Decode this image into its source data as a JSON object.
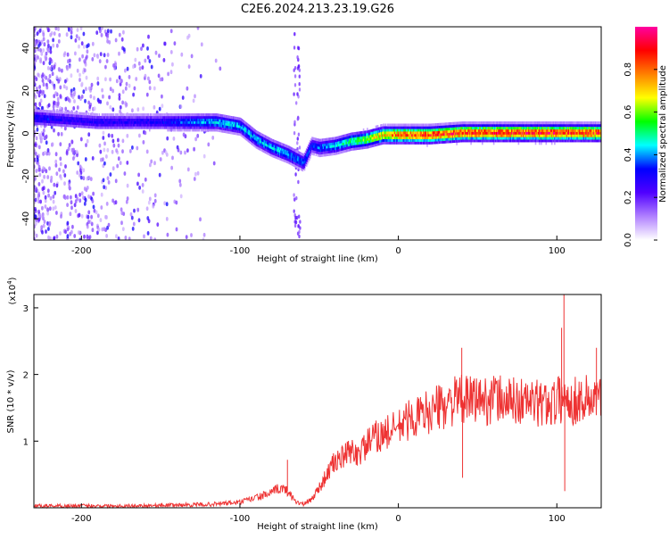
{
  "title": "C2E6.2024.213.23.19.G26",
  "chart_data": [
    {
      "type": "heatmap",
      "xlabel": "Height of straight line (km)",
      "ylabel": "Frequency (Hz)",
      "xlim": [
        -230,
        128
      ],
      "ylim": [
        -50,
        50
      ],
      "x_ticks": [
        "-200",
        "-100",
        "0",
        "100"
      ],
      "x_tick_values": [
        -200,
        -100,
        0,
        100
      ],
      "y_ticks": [
        "-40",
        "-20",
        "0",
        "20",
        "40"
      ],
      "y_tick_values": [
        -40,
        -20,
        0,
        20,
        40
      ],
      "grid": false,
      "colorbar": {
        "label": "Normalized spectral amplitude",
        "range": [
          0,
          1
        ],
        "ticks": [
          "0.0",
          "0.2",
          "0.4",
          "0.6",
          "0.8"
        ],
        "tick_values": [
          0.0,
          0.2,
          0.4,
          0.6,
          0.8
        ],
        "colors": [
          "#ffffff",
          "#b080ff",
          "#5000ff",
          "#0000ff",
          "#00ffff",
          "#00ff00",
          "#ffff00",
          "#ff8000",
          "#ff0000",
          "#ff00a0"
        ]
      },
      "ridge_x": [
        -230,
        -210,
        -190,
        -170,
        -150,
        -130,
        -115,
        -100,
        -90,
        -80,
        -70,
        -60,
        -55,
        -50,
        -40,
        -30,
        -20,
        -10,
        0,
        20,
        40,
        60,
        80,
        100,
        128
      ],
      "ridge_y": [
        8,
        7,
        6,
        6,
        6,
        6,
        6,
        4,
        -2,
        -6,
        -9,
        -13,
        -5,
        -6,
        -5,
        -3,
        -2,
        0,
        0,
        0,
        1,
        1,
        1,
        1,
        1
      ],
      "ridge_amplitude": [
        0.35,
        0.3,
        0.3,
        0.3,
        0.32,
        0.4,
        0.45,
        0.45,
        0.45,
        0.45,
        0.45,
        0.4,
        0.35,
        0.4,
        0.45,
        0.55,
        0.65,
        0.75,
        0.85,
        0.9,
        0.9,
        0.92,
        0.92,
        0.92,
        0.9
      ]
    },
    {
      "type": "line",
      "xlabel": "Height of straight line (km)",
      "ylabel": "SNR (10 * v/v)",
      "y_multiplier": "(x10",
      "y_multiplier_exp": "4",
      "xlim": [
        -230,
        128
      ],
      "ylim": [
        0,
        3.2
      ],
      "x_ticks": [
        "-200",
        "-100",
        "0",
        "100"
      ],
      "x_tick_values": [
        -200,
        -100,
        0,
        100
      ],
      "y_ticks": [
        "1",
        "2",
        "3"
      ],
      "y_tick_values": [
        1,
        2,
        3
      ],
      "grid": false,
      "series": [
        {
          "color": "#ee3333",
          "x": [
            -230,
            -200,
            -170,
            -140,
            -120,
            -100,
            -90,
            -80,
            -75,
            -70,
            -65,
            -60,
            -55,
            -50,
            -45,
            -40,
            -35,
            -30,
            -25,
            -20,
            -15,
            -10,
            -5,
            0,
            5,
            10,
            15,
            20,
            25,
            30,
            35,
            40,
            45,
            50,
            55,
            60,
            70,
            80,
            90,
            100,
            104,
            110,
            120,
            128
          ],
          "y": [
            0.03,
            0.03,
            0.03,
            0.04,
            0.05,
            0.08,
            0.15,
            0.22,
            0.3,
            0.25,
            0.1,
            0.05,
            0.12,
            0.3,
            0.5,
            0.7,
            0.75,
            0.85,
            0.8,
            0.95,
            1.05,
            1.1,
            1.15,
            1.2,
            1.3,
            1.35,
            1.4,
            1.45,
            1.5,
            1.55,
            1.6,
            1.62,
            1.6,
            1.65,
            1.6,
            1.65,
            1.6,
            1.6,
            1.55,
            1.6,
            1.65,
            1.6,
            1.65,
            1.6
          ]
        }
      ],
      "spikes": [
        {
          "x": -70,
          "y": 0.72
        },
        {
          "x": 40,
          "y": 2.4
        },
        {
          "x": 40.5,
          "y": 0.45
        },
        {
          "x": 103,
          "y": 2.7
        },
        {
          "x": 104.5,
          "y": 3.35
        },
        {
          "x": 105,
          "y": 0.25
        },
        {
          "x": 125,
          "y": 2.4
        }
      ]
    }
  ]
}
